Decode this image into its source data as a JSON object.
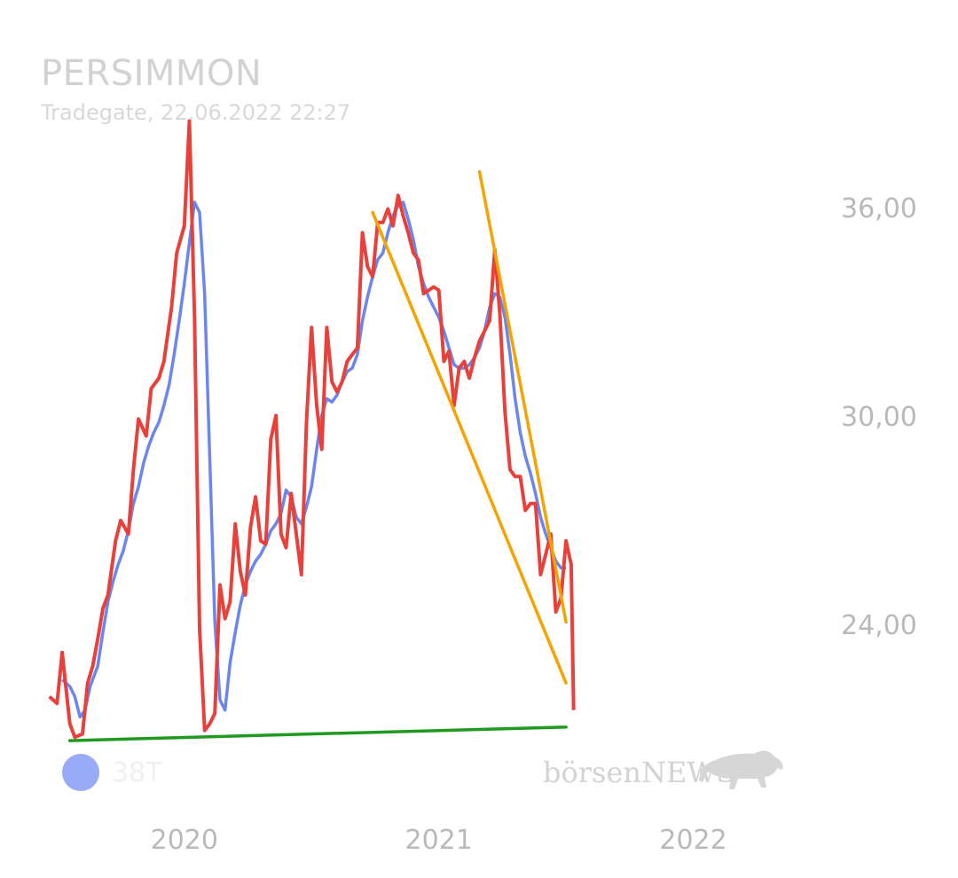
{
  "header": {
    "title": "PERSIMMON",
    "subtitle": "Tradegate, 22.06.2022 22:27"
  },
  "legend": {
    "label": "38T",
    "color": "#98aaf8"
  },
  "watermark": {
    "text": "börsenNEWS",
    "icon": "bull-icon"
  },
  "chart_data": {
    "type": "line",
    "title": "PERSIMMON",
    "subtitle": "Tradegate, 22.06.2022 22:27",
    "y_ticks": [
      "24,00",
      "30,00",
      "36,00"
    ],
    "x_ticks": [
      "2020",
      "2021",
      "2022"
    ],
    "x_tick_values": [
      2020.0,
      2021.0,
      2022.0
    ],
    "ylim": [
      19.3,
      41.3
    ],
    "xlim": [
      2019.45,
      2022.5
    ],
    "grid": false,
    "series": [
      {
        "name": "",
        "color": "#e8403a",
        "points": [
          [
            2019.47,
            22.3
          ],
          [
            2019.5,
            22.1
          ],
          [
            2019.52,
            23.6
          ],
          [
            2019.55,
            21.5
          ],
          [
            2019.57,
            21.1
          ],
          [
            2019.6,
            21.2
          ],
          [
            2019.62,
            22.7
          ],
          [
            2019.64,
            23.2
          ],
          [
            2019.66,
            24
          ],
          [
            2019.68,
            24.9
          ],
          [
            2019.7,
            25.3
          ],
          [
            2019.73,
            26.9
          ],
          [
            2019.75,
            27.5
          ],
          [
            2019.78,
            27.1
          ],
          [
            2019.8,
            29
          ],
          [
            2019.82,
            30.5
          ],
          [
            2019.85,
            30
          ],
          [
            2019.87,
            31.4
          ],
          [
            2019.9,
            31.7
          ],
          [
            2019.92,
            32.2
          ],
          [
            2019.95,
            33.8
          ],
          [
            2019.97,
            35.4
          ],
          [
            2020.0,
            36.2
          ],
          [
            2020.02,
            39.3
          ],
          [
            2020.04,
            33.5
          ],
          [
            2020.06,
            24.3
          ],
          [
            2020.08,
            21.3
          ],
          [
            2020.1,
            21.5
          ],
          [
            2020.12,
            21.8
          ],
          [
            2020.14,
            25.6
          ],
          [
            2020.16,
            24.6
          ],
          [
            2020.18,
            25.1
          ],
          [
            2020.2,
            27.4
          ],
          [
            2020.22,
            26
          ],
          [
            2020.24,
            25.3
          ],
          [
            2020.26,
            27.3
          ],
          [
            2020.28,
            28.2
          ],
          [
            2020.3,
            26.9
          ],
          [
            2020.32,
            26.8
          ],
          [
            2020.34,
            29.9
          ],
          [
            2020.36,
            30.6
          ],
          [
            2020.38,
            27.1
          ],
          [
            2020.4,
            26.7
          ],
          [
            2020.42,
            28.3
          ],
          [
            2020.44,
            27.1
          ],
          [
            2020.46,
            25.9
          ],
          [
            2020.48,
            30.4
          ],
          [
            2020.5,
            33.2
          ],
          [
            2020.52,
            30.9
          ],
          [
            2020.54,
            29.6
          ],
          [
            2020.56,
            33.2
          ],
          [
            2020.58,
            31.6
          ],
          [
            2020.6,
            31.3
          ],
          [
            2020.62,
            31.6
          ],
          [
            2020.64,
            32.2
          ],
          [
            2020.66,
            32.4
          ],
          [
            2020.68,
            32.6
          ],
          [
            2020.7,
            36
          ],
          [
            2020.72,
            35
          ],
          [
            2020.74,
            34.7
          ],
          [
            2020.76,
            36.3
          ],
          [
            2020.78,
            36.3
          ],
          [
            2020.8,
            36.7
          ],
          [
            2020.82,
            36.2
          ],
          [
            2020.84,
            37.1
          ],
          [
            2020.86,
            36.5
          ],
          [
            2020.88,
            36
          ],
          [
            2020.9,
            35.4
          ],
          [
            2020.92,
            35.2
          ],
          [
            2020.94,
            34.2
          ],
          [
            2020.96,
            34.3
          ],
          [
            2020.98,
            34.4
          ],
          [
            2021.0,
            34.3
          ],
          [
            2021.02,
            32.2
          ],
          [
            2021.04,
            32.5
          ],
          [
            2021.06,
            30.9
          ],
          [
            2021.08,
            32
          ],
          [
            2021.1,
            32.2
          ],
          [
            2021.12,
            31.7
          ],
          [
            2021.14,
            32.3
          ],
          [
            2021.16,
            32.8
          ],
          [
            2021.18,
            33.1
          ],
          [
            2021.2,
            33.4
          ],
          [
            2021.22,
            35.5
          ],
          [
            2021.24,
            33.6
          ],
          [
            2021.26,
            30.7
          ],
          [
            2021.28,
            29
          ],
          [
            2021.3,
            28.8
          ],
          [
            2021.32,
            28.8
          ],
          [
            2021.34,
            27.8
          ],
          [
            2021.36,
            28
          ],
          [
            2021.38,
            28
          ],
          [
            2021.4,
            25.9
          ],
          [
            2021.42,
            26.5
          ],
          [
            2021.44,
            27.1
          ],
          [
            2021.46,
            24.8
          ],
          [
            2021.48,
            25.2
          ],
          [
            2021.5,
            26.9
          ],
          [
            2021.52,
            26.2
          ],
          [
            2021.53,
            21.9
          ]
        ]
      },
      {
        "name": "38T",
        "color": "#6b86ee",
        "points": [
          [
            2019.52,
            22.8
          ],
          [
            2019.55,
            22.6
          ],
          [
            2019.57,
            22.3
          ],
          [
            2019.59,
            21.7
          ],
          [
            2019.61,
            21.9
          ],
          [
            2019.63,
            22.6
          ],
          [
            2019.66,
            23.2
          ],
          [
            2019.68,
            24.2
          ],
          [
            2019.7,
            25.1
          ],
          [
            2019.72,
            25.7
          ],
          [
            2019.74,
            26.2
          ],
          [
            2019.76,
            26.6
          ],
          [
            2019.78,
            27.2
          ],
          [
            2019.8,
            28
          ],
          [
            2019.82,
            28.5
          ],
          [
            2019.84,
            29.2
          ],
          [
            2019.86,
            29.7
          ],
          [
            2019.88,
            30.1
          ],
          [
            2019.9,
            30.4
          ],
          [
            2019.92,
            30.9
          ],
          [
            2019.94,
            31.5
          ],
          [
            2019.96,
            32.4
          ],
          [
            2019.98,
            33.4
          ],
          [
            2020.0,
            34.5
          ],
          [
            2020.02,
            35.7
          ],
          [
            2020.04,
            36.9
          ],
          [
            2020.06,
            36.6
          ],
          [
            2020.08,
            34.2
          ],
          [
            2020.1,
            29.3
          ],
          [
            2020.12,
            24.5
          ],
          [
            2020.14,
            22.2
          ],
          [
            2020.16,
            21.9
          ],
          [
            2020.18,
            23.3
          ],
          [
            2020.2,
            24.2
          ],
          [
            2020.22,
            25
          ],
          [
            2020.24,
            25.6
          ],
          [
            2020.26,
            26
          ],
          [
            2020.28,
            26.3
          ],
          [
            2020.3,
            26.5
          ],
          [
            2020.32,
            26.8
          ],
          [
            2020.34,
            27.2
          ],
          [
            2020.36,
            27.4
          ],
          [
            2020.38,
            27.7
          ],
          [
            2020.4,
            28.4
          ],
          [
            2020.42,
            28.2
          ],
          [
            2020.44,
            27.6
          ],
          [
            2020.46,
            27.4
          ],
          [
            2020.48,
            27.9
          ],
          [
            2020.5,
            28.5
          ],
          [
            2020.52,
            29.6
          ],
          [
            2020.54,
            30.6
          ],
          [
            2020.56,
            31.1
          ],
          [
            2020.58,
            31
          ],
          [
            2020.6,
            31.2
          ],
          [
            2020.62,
            31.6
          ],
          [
            2020.64,
            31.9
          ],
          [
            2020.66,
            32
          ],
          [
            2020.68,
            32.4
          ],
          [
            2020.7,
            33.4
          ],
          [
            2020.72,
            34.1
          ],
          [
            2020.74,
            34.7
          ],
          [
            2020.76,
            35.2
          ],
          [
            2020.78,
            35.4
          ],
          [
            2020.8,
            36
          ],
          [
            2020.82,
            36.5
          ],
          [
            2020.84,
            36.8
          ],
          [
            2020.86,
            36.9
          ],
          [
            2020.88,
            36.4
          ],
          [
            2020.9,
            35.8
          ],
          [
            2020.92,
            35
          ],
          [
            2020.94,
            34.5
          ],
          [
            2020.96,
            34.1
          ],
          [
            2020.98,
            33.8
          ],
          [
            2021.0,
            33.5
          ],
          [
            2021.02,
            33.1
          ],
          [
            2021.04,
            32.6
          ],
          [
            2021.06,
            32.1
          ],
          [
            2021.08,
            32
          ],
          [
            2021.1,
            32
          ],
          [
            2021.12,
            32.1
          ],
          [
            2021.14,
            32.3
          ],
          [
            2021.16,
            32.6
          ],
          [
            2021.18,
            33.1
          ],
          [
            2021.2,
            33.8
          ],
          [
            2021.22,
            34.2
          ],
          [
            2021.24,
            34.1
          ],
          [
            2021.26,
            33.5
          ],
          [
            2021.28,
            32.4
          ],
          [
            2021.3,
            31.1
          ],
          [
            2021.32,
            30.1
          ],
          [
            2021.34,
            29.4
          ],
          [
            2021.36,
            28.9
          ],
          [
            2021.38,
            28.3
          ],
          [
            2021.4,
            27.6
          ],
          [
            2021.42,
            27.1
          ],
          [
            2021.44,
            26.7
          ],
          [
            2021.46,
            26.3
          ],
          [
            2021.48,
            26.1
          ],
          [
            2021.5,
            26.1
          ]
        ]
      }
    ],
    "overlays": [
      {
        "kind": "trendline",
        "color": "#f5a300",
        "points": [
          [
            2020.74,
            36.6
          ],
          [
            2021.5,
            22.7
          ]
        ]
      },
      {
        "kind": "trendline",
        "color": "#f5a300",
        "points": [
          [
            2021.16,
            37.8
          ],
          [
            2021.5,
            24.5
          ]
        ]
      },
      {
        "kind": "trendline",
        "color": "#1f9a1e",
        "points": [
          [
            2019.55,
            21.0
          ],
          [
            2021.5,
            21.4
          ]
        ]
      }
    ]
  }
}
